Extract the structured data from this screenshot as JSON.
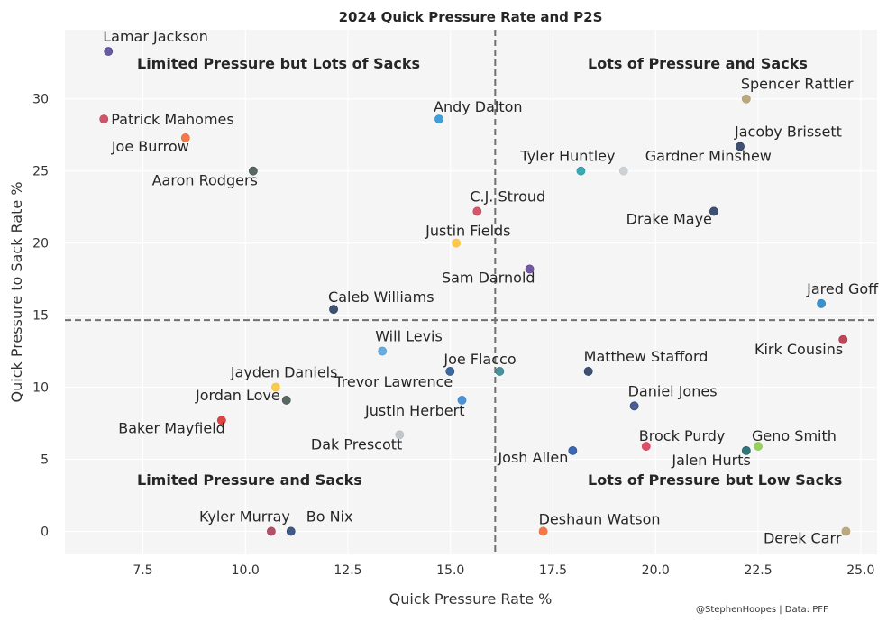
{
  "chart_data": {
    "type": "scatter",
    "title": "2024 Quick Pressure Rate and P2S",
    "xlabel": "Quick Pressure Rate %",
    "ylabel": "Quick Pressure to Sack Rate %",
    "xlim": [
      5.6,
      25.4
    ],
    "ylim": [
      -1.6,
      34.8
    ],
    "x_ticks": [
      "7.5",
      "10.0",
      "12.5",
      "15.0",
      "17.5",
      "20.0",
      "22.5",
      "25.0"
    ],
    "x_tick_values": [
      7.5,
      10.0,
      12.5,
      15.0,
      17.5,
      20.0,
      22.5,
      25.0
    ],
    "y_ticks": [
      "0",
      "5",
      "10",
      "15",
      "20",
      "25",
      "30"
    ],
    "y_tick_values": [
      0,
      5,
      10,
      15,
      20,
      25,
      30
    ],
    "grid": true,
    "reference_lines": {
      "x_mean": 16.09,
      "y_mean": 14.65,
      "style": "dashed",
      "color": "#707070"
    },
    "quadrant_labels": {
      "top_left": "Limited Pressure but Lots of Sacks",
      "top_right": "Lots of Pressure and Sacks",
      "bottom_left": "Limited Pressure and Sacks",
      "bottom_right": "Lots of Pressure but Low Sacks"
    },
    "credit": "@StephenHoopes | Data: PFF",
    "points": [
      {
        "name": "Lamar Jackson",
        "x": 6.66,
        "y": 33.3,
        "color": "#4b3f8f"
      },
      {
        "name": "Patrick Mahomes",
        "x": 6.55,
        "y": 28.6,
        "color": "#c8394f"
      },
      {
        "name": "Joe Burrow",
        "x": 8.54,
        "y": 27.3,
        "color": "#f4622a"
      },
      {
        "name": "Aaron Rodgers",
        "x": 10.19,
        "y": 25.0,
        "color": "#3c4f47"
      },
      {
        "name": "Andy Dalton",
        "x": 14.72,
        "y": 28.6,
        "color": "#1f8fd1"
      },
      {
        "name": "Spencer Rattler",
        "x": 22.21,
        "y": 30.0,
        "color": "#b19a6a"
      },
      {
        "name": "Jacoby Brissett",
        "x": 22.06,
        "y": 26.7,
        "color": "#1e3458"
      },
      {
        "name": "Tyler Huntley",
        "x": 18.18,
        "y": 25.0,
        "color": "#1a9ba5"
      },
      {
        "name": "Gardner Minshew",
        "x": 19.22,
        "y": 25.0,
        "color": "#c7cacd"
      },
      {
        "name": "C.J. Stroud",
        "x": 15.65,
        "y": 22.2,
        "color": "#cc3a52"
      },
      {
        "name": "Drake Maye",
        "x": 21.42,
        "y": 22.2,
        "color": "#1e3458"
      },
      {
        "name": "Justin Fields",
        "x": 15.14,
        "y": 20.0,
        "color": "#fbc02d"
      },
      {
        "name": "Sam Darnold",
        "x": 16.93,
        "y": 18.2,
        "color": "#5b3d92"
      },
      {
        "name": "Jared Goff",
        "x": 24.04,
        "y": 15.8,
        "color": "#1e7cc0"
      },
      {
        "name": "Caleb Williams",
        "x": 12.15,
        "y": 15.4,
        "color": "#1e3458"
      },
      {
        "name": "Kirk Cousins",
        "x": 24.57,
        "y": 13.3,
        "color": "#b1283f"
      },
      {
        "name": "Will Levis",
        "x": 13.34,
        "y": 12.5,
        "color": "#4d9ddb"
      },
      {
        "name": "Joe Flacco",
        "x": 16.2,
        "y": 11.1,
        "color": "#2f7f8c"
      },
      {
        "name": "Trevor Lawrence",
        "x": 14.99,
        "y": 11.1,
        "color": "#1d4f8a"
      },
      {
        "name": "Matthew Stafford",
        "x": 18.36,
        "y": 11.1,
        "color": "#1e3458"
      },
      {
        "name": "Justin Herbert",
        "x": 15.28,
        "y": 9.1,
        "color": "#2f80cf"
      },
      {
        "name": "Jayden Daniels",
        "x": 10.74,
        "y": 10.0,
        "color": "#fbc02d"
      },
      {
        "name": "Jordan Love",
        "x": 11.0,
        "y": 9.1,
        "color": "#3c4f47"
      },
      {
        "name": "Daniel Jones",
        "x": 19.48,
        "y": 8.7,
        "color": "#2c3f7f"
      },
      {
        "name": "Baker Mayfield",
        "x": 9.42,
        "y": 7.7,
        "color": "#d62828"
      },
      {
        "name": "Dak Prescott",
        "x": 13.76,
        "y": 6.7,
        "color": "#b8bcc0"
      },
      {
        "name": "Brock Purdy",
        "x": 19.77,
        "y": 5.9,
        "color": "#d5344f"
      },
      {
        "name": "Geno Smith",
        "x": 22.5,
        "y": 5.9,
        "color": "#86c84a"
      },
      {
        "name": "Jalen Hurts",
        "x": 22.21,
        "y": 5.6,
        "color": "#105d63"
      },
      {
        "name": "Josh Allen",
        "x": 17.98,
        "y": 5.6,
        "color": "#1c4fa3"
      },
      {
        "name": "Kyler Murray",
        "x": 10.63,
        "y": 0.0,
        "color": "#a8324f"
      },
      {
        "name": "Bo Nix",
        "x": 11.11,
        "y": 0.0,
        "color": "#1e3f6e"
      },
      {
        "name": "Deshaun Watson",
        "x": 17.26,
        "y": 0.0,
        "color": "#f4622a"
      },
      {
        "name": "Derek Carr",
        "x": 24.64,
        "y": 0.0,
        "color": "#b19a6a"
      }
    ]
  }
}
